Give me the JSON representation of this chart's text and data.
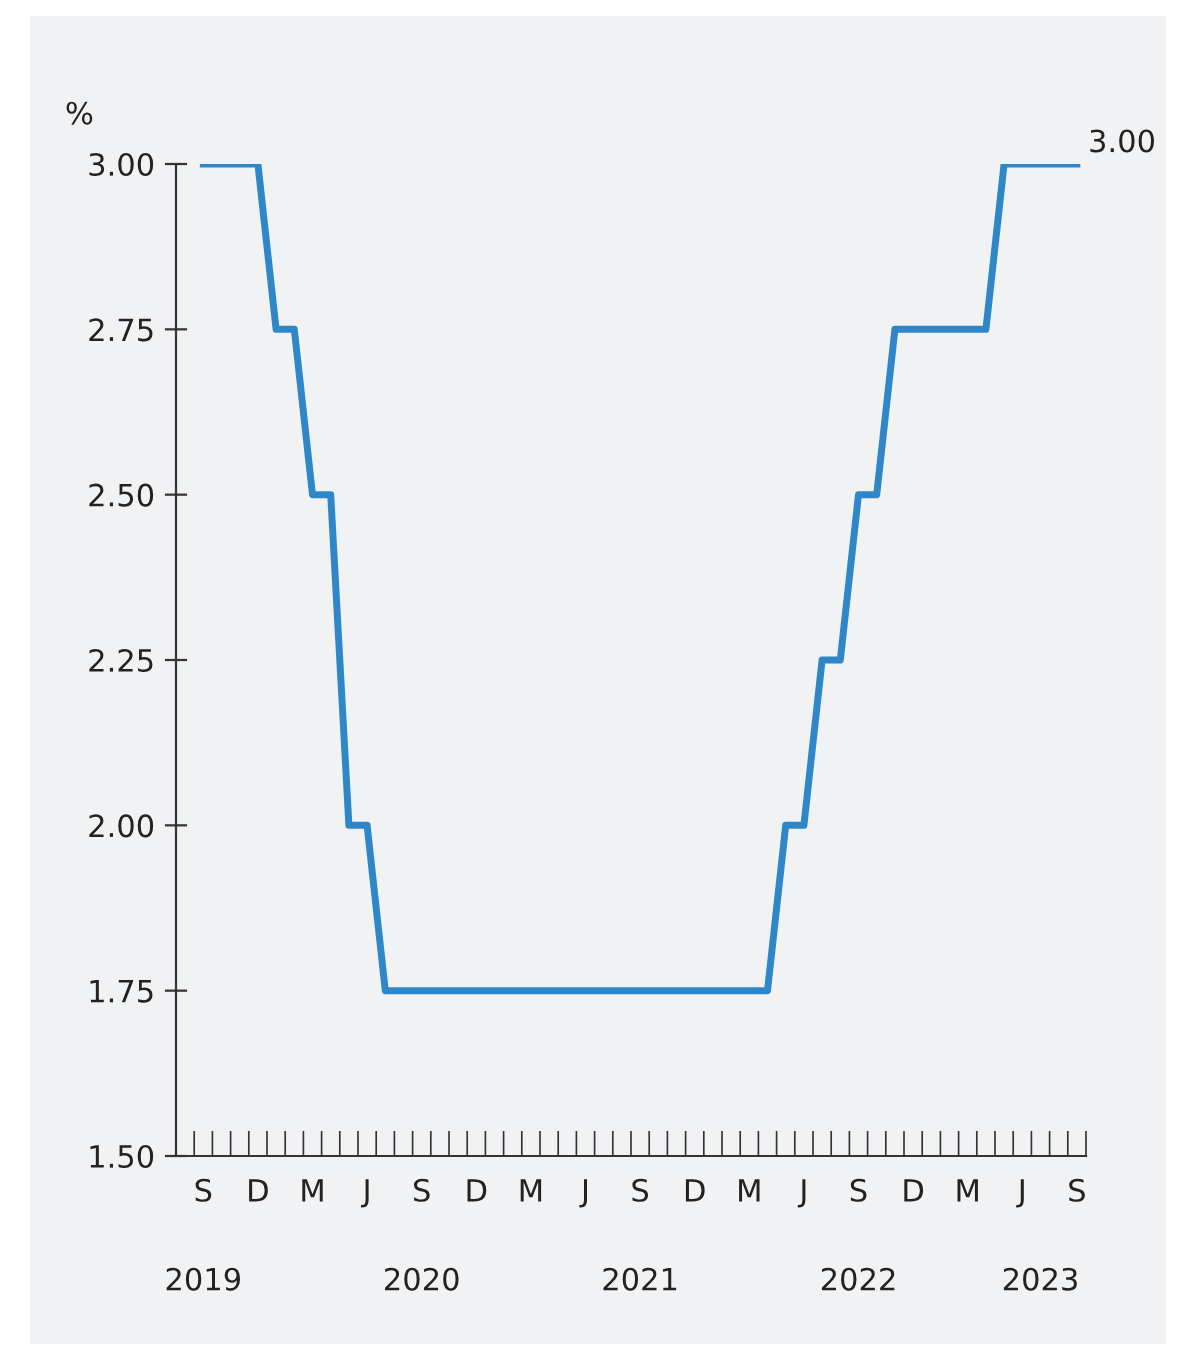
{
  "chart_data": {
    "type": "line",
    "ylabel": "%",
    "categories": [
      null,
      "S",
      null,
      null,
      "D",
      null,
      null,
      "M",
      null,
      null,
      "J",
      null,
      null,
      "S",
      null,
      null,
      "D",
      null,
      null,
      "M",
      null,
      null,
      "J",
      null,
      null,
      "S",
      null,
      null,
      "D",
      null,
      null,
      "M",
      null,
      null,
      "J",
      null,
      null,
      "S",
      null,
      null,
      "D",
      null,
      null,
      "M",
      null,
      null,
      "J",
      null,
      null,
      "S"
    ],
    "series": [
      {
        "color": "#2f86c8",
        "values": [
          null,
          3.0,
          3.0,
          3.0,
          3.0,
          2.75,
          2.75,
          2.5,
          2.5,
          2.0,
          2.0,
          1.75,
          1.75,
          1.75,
          1.75,
          1.75,
          1.75,
          1.75,
          1.75,
          1.75,
          1.75,
          1.75,
          1.75,
          1.75,
          1.75,
          1.75,
          1.75,
          1.75,
          1.75,
          1.75,
          1.75,
          1.75,
          1.75,
          2.0,
          2.0,
          2.25,
          2.25,
          2.5,
          2.5,
          2.75,
          2.75,
          2.75,
          2.75,
          2.75,
          2.75,
          3.0,
          3.0,
          3.0,
          3.0,
          3.0
        ],
        "value_labels": [
          null,
          null,
          null,
          null,
          null,
          null,
          null,
          null,
          null,
          null,
          null,
          null,
          null,
          null,
          null,
          null,
          null,
          null,
          null,
          null,
          null,
          null,
          null,
          null,
          null,
          null,
          null,
          null,
          null,
          null,
          null,
          null,
          null,
          null,
          null,
          null,
          null,
          null,
          null,
          null,
          null,
          null,
          null,
          null,
          null,
          null,
          null,
          null,
          null,
          "3.00"
        ]
      }
    ],
    "ylim": [
      1.5,
      3.0
    ],
    "yticks": [
      {
        "value": 1.5,
        "label": "1.50"
      },
      {
        "value": 1.75,
        "label": "1.75"
      },
      {
        "value": 2.0,
        "label": "2.00"
      },
      {
        "value": 2.25,
        "label": "2.25"
      },
      {
        "value": 2.5,
        "label": "2.50"
      },
      {
        "value": 2.75,
        "label": "2.75"
      },
      {
        "value": 3.0,
        "label": "3.00"
      }
    ],
    "annotations": [
      "2019",
      "2020",
      "2021",
      "2022",
      "2023"
    ]
  }
}
